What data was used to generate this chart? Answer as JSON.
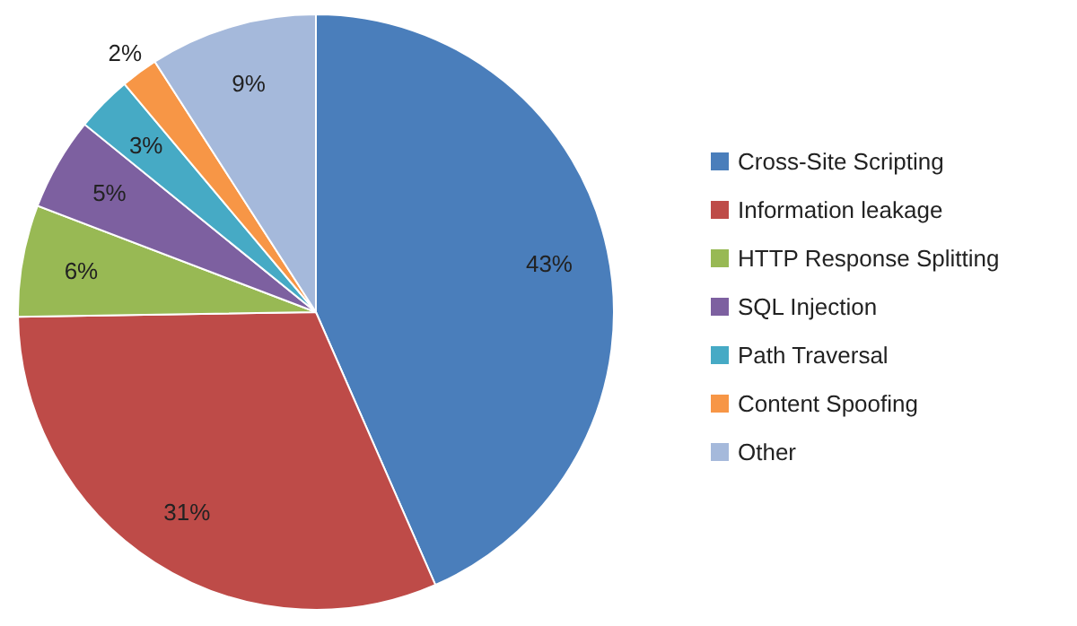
{
  "chart_data": {
    "type": "pie",
    "categories": [
      "Cross-Site Scripting",
      "Information leakage",
      "HTTP Response Splitting",
      "SQL Injection",
      "Path Traversal",
      "Content Spoofing",
      "Other"
    ],
    "values": [
      43,
      31,
      6,
      5,
      3,
      2,
      9
    ],
    "colors": [
      "#4a7ebb",
      "#be4b48",
      "#98b954",
      "#7d60a0",
      "#46aac5",
      "#f79646",
      "#a5b9db"
    ],
    "value_labels": [
      "43%",
      "31%",
      "6%",
      "5%",
      "3%",
      "2%",
      "9%"
    ],
    "legend": "right"
  }
}
